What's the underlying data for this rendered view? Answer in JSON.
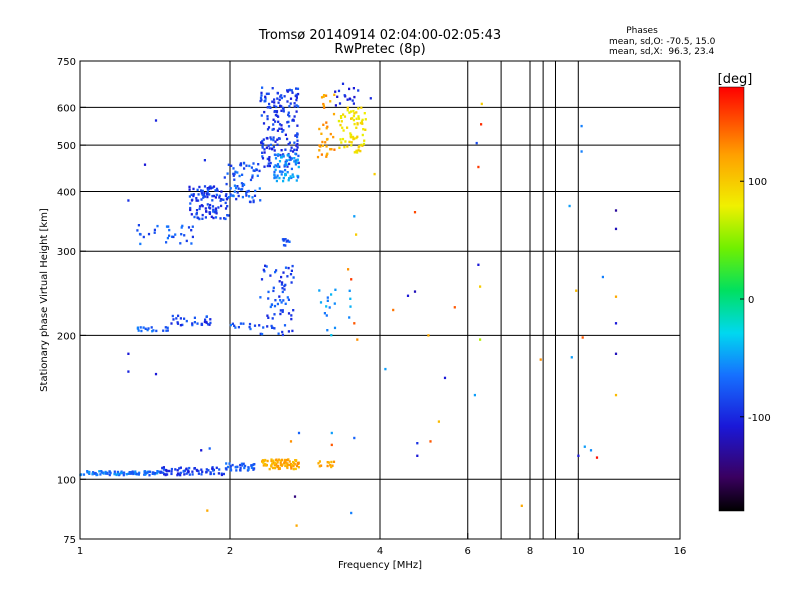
{
  "chart_data": {
    "type": "scatter",
    "title": "Tromsø 20140914 02:04:00-02:05:43",
    "subtitle": "RwPretec (8p)",
    "xlabel": "Frequency [MHz]",
    "ylabel": "Stationary phase Virtual Height [km]",
    "x_scale": "log",
    "y_scale": "log",
    "xlim": [
      1,
      16
    ],
    "ylim": [
      75,
      750
    ],
    "x_ticks": [
      1,
      2,
      4,
      6,
      8,
      10,
      16
    ],
    "x_tick_labels": [
      "1",
      "2",
      "4",
      "6",
      "8",
      "10",
      "16"
    ],
    "x_gridlines": [
      2,
      4,
      6,
      7,
      8,
      8.5,
      9,
      10
    ],
    "y_ticks": [
      75,
      100,
      200,
      300,
      400,
      500,
      600,
      750
    ],
    "y_tick_labels": [
      "75",
      "100",
      "200",
      "300",
      "400",
      "500",
      "600",
      "750"
    ],
    "y_gridlines": [
      100,
      200,
      300,
      400,
      500,
      600
    ],
    "grid": true,
    "phases_legend": {
      "heading": "Phases",
      "line_o": "mean, sd,O: -70.5, 15.0",
      "line_x": "mean, sd,X:  96.3, 23.4"
    },
    "colorbar": {
      "label": "[deg]",
      "min": -180,
      "max": 180,
      "ticks": [
        100,
        0,
        -100
      ],
      "tick_labels": [
        "100",
        "0",
        "-100"
      ]
    },
    "clusters": [
      {
        "f": [
          1.0,
          1.45
        ],
        "h": [
          102,
          104
        ],
        "phase": -75,
        "n": 90
      },
      {
        "f": [
          1.45,
          1.95
        ],
        "h": [
          102,
          106
        ],
        "phase": -95,
        "n": 70
      },
      {
        "f": [
          1.95,
          2.25
        ],
        "h": [
          104,
          108
        ],
        "phase": -85,
        "n": 35
      },
      {
        "f": [
          2.3,
          2.75
        ],
        "h": [
          105,
          110
        ],
        "phase": 118,
        "n": 85
      },
      {
        "f": [
          3.0,
          3.25
        ],
        "h": [
          106,
          109
        ],
        "phase": 125,
        "n": 12
      },
      {
        "f": [
          1.3,
          1.5
        ],
        "h": [
          204,
          208
        ],
        "phase": -80,
        "n": 18
      },
      {
        "f": [
          1.5,
          1.85
        ],
        "h": [
          210,
          220
        ],
        "phase": -95,
        "n": 30
      },
      {
        "f": [
          2.0,
          2.3
        ],
        "h": [
          205,
          212
        ],
        "phase": -85,
        "n": 12
      },
      {
        "f": [
          2.3,
          2.7
        ],
        "h": [
          200,
          280
        ],
        "phase": -90,
        "n": 70
      },
      {
        "f": [
          3.0,
          3.5
        ],
        "h": [
          200,
          270
        ],
        "phase": -60,
        "n": 18
      },
      {
        "f": [
          1.3,
          1.7
        ],
        "h": [
          310,
          340
        ],
        "phase": -85,
        "n": 30
      },
      {
        "f": [
          1.65,
          2.0
        ],
        "h": [
          350,
          410
        ],
        "phase": -95,
        "n": 110
      },
      {
        "f": [
          1.95,
          2.3
        ],
        "h": [
          380,
          460
        ],
        "phase": -85,
        "n": 70
      },
      {
        "f": [
          2.3,
          2.75
        ],
        "h": [
          450,
          660
        ],
        "phase": -95,
        "n": 180
      },
      {
        "f": [
          2.45,
          2.75
        ],
        "h": [
          420,
          480
        ],
        "phase": -65,
        "n": 60
      },
      {
        "f": [
          2.55,
          2.65
        ],
        "h": [
          308,
          318
        ],
        "phase": -90,
        "n": 10
      },
      {
        "f": [
          3.0,
          3.25
        ],
        "h": [
          470,
          640
        ],
        "phase": 125,
        "n": 35
      },
      {
        "f": [
          3.3,
          3.75
        ],
        "h": [
          480,
          600
        ],
        "phase": 88,
        "n": 70
      },
      {
        "f": [
          3.25,
          3.9
        ],
        "h": [
          600,
          680
        ],
        "phase": -100,
        "n": 18
      }
    ],
    "points": [
      {
        "f": 1.25,
        "h": 383,
        "phase": -100
      },
      {
        "f": 1.35,
        "h": 455,
        "phase": -110
      },
      {
        "f": 1.42,
        "h": 563,
        "phase": -105
      },
      {
        "f": 1.25,
        "h": 183,
        "phase": -110
      },
      {
        "f": 1.25,
        "h": 168,
        "phase": -105
      },
      {
        "f": 1.42,
        "h": 166,
        "phase": -110
      },
      {
        "f": 1.75,
        "h": 115,
        "phase": -110
      },
      {
        "f": 1.82,
        "h": 116,
        "phase": -80
      },
      {
        "f": 1.8,
        "h": 86,
        "phase": 120
      },
      {
        "f": 1.78,
        "h": 465,
        "phase": -100
      },
      {
        "f": 2.7,
        "h": 92,
        "phase": -140
      },
      {
        "f": 2.72,
        "h": 80,
        "phase": 120
      },
      {
        "f": 2.75,
        "h": 125,
        "phase": -80
      },
      {
        "f": 2.65,
        "h": 120,
        "phase": 130
      },
      {
        "f": 3.2,
        "h": 118,
        "phase": 150
      },
      {
        "f": 3.2,
        "h": 125,
        "phase": -60
      },
      {
        "f": 3.55,
        "h": 122,
        "phase": -80
      },
      {
        "f": 3.5,
        "h": 85,
        "phase": -70
      },
      {
        "f": 3.55,
        "h": 355,
        "phase": -60
      },
      {
        "f": 3.58,
        "h": 325,
        "phase": 100
      },
      {
        "f": 3.45,
        "h": 275,
        "phase": 130
      },
      {
        "f": 3.5,
        "h": 262,
        "phase": 160
      },
      {
        "f": 3.55,
        "h": 212,
        "phase": 150
      },
      {
        "f": 3.6,
        "h": 196,
        "phase": 130
      },
      {
        "f": 3.9,
        "h": 435,
        "phase": 100
      },
      {
        "f": 4.1,
        "h": 170,
        "phase": -60
      },
      {
        "f": 4.25,
        "h": 226,
        "phase": 140
      },
      {
        "f": 4.55,
        "h": 242,
        "phase": -110
      },
      {
        "f": 4.7,
        "h": 247,
        "phase": -120
      },
      {
        "f": 4.7,
        "h": 362,
        "phase": 155
      },
      {
        "f": 4.75,
        "h": 119,
        "phase": -100
      },
      {
        "f": 4.75,
        "h": 112,
        "phase": -110
      },
      {
        "f": 5.0,
        "h": 200,
        "phase": 120
      },
      {
        "f": 5.05,
        "h": 120,
        "phase": 150
      },
      {
        "f": 5.25,
        "h": 132,
        "phase": 110
      },
      {
        "f": 5.4,
        "h": 163,
        "phase": -110
      },
      {
        "f": 5.65,
        "h": 229,
        "phase": 150
      },
      {
        "f": 6.2,
        "h": 150,
        "phase": -60
      },
      {
        "f": 6.3,
        "h": 281,
        "phase": -110
      },
      {
        "f": 6.35,
        "h": 253,
        "phase": 100
      },
      {
        "f": 6.35,
        "h": 196,
        "phase": 60
      },
      {
        "f": 6.3,
        "h": 450,
        "phase": 160
      },
      {
        "f": 6.25,
        "h": 505,
        "phase": -90
      },
      {
        "f": 6.4,
        "h": 610,
        "phase": 100
      },
      {
        "f": 6.38,
        "h": 553,
        "phase": 165
      },
      {
        "f": 7.7,
        "h": 88,
        "phase": 120
      },
      {
        "f": 8.4,
        "h": 178,
        "phase": 130
      },
      {
        "f": 9.6,
        "h": 373,
        "phase": -60
      },
      {
        "f": 9.7,
        "h": 180,
        "phase": -60
      },
      {
        "f": 9.9,
        "h": 248,
        "phase": 110
      },
      {
        "f": 10.15,
        "h": 548,
        "phase": -70
      },
      {
        "f": 10.15,
        "h": 485,
        "phase": -70
      },
      {
        "f": 10.2,
        "h": 198,
        "phase": 150
      },
      {
        "f": 10.0,
        "h": 112,
        "phase": -110
      },
      {
        "f": 10.3,
        "h": 117,
        "phase": -60
      },
      {
        "f": 10.6,
        "h": 115,
        "phase": -65
      },
      {
        "f": 10.9,
        "h": 111,
        "phase": 175
      },
      {
        "f": 11.2,
        "h": 265,
        "phase": -70
      },
      {
        "f": 11.9,
        "h": 365,
        "phase": -130
      },
      {
        "f": 11.9,
        "h": 334,
        "phase": -120
      },
      {
        "f": 11.9,
        "h": 241,
        "phase": 120
      },
      {
        "f": 11.9,
        "h": 212,
        "phase": -110
      },
      {
        "f": 11.9,
        "h": 183,
        "phase": -120
      },
      {
        "f": 11.9,
        "h": 150,
        "phase": 110
      }
    ]
  }
}
